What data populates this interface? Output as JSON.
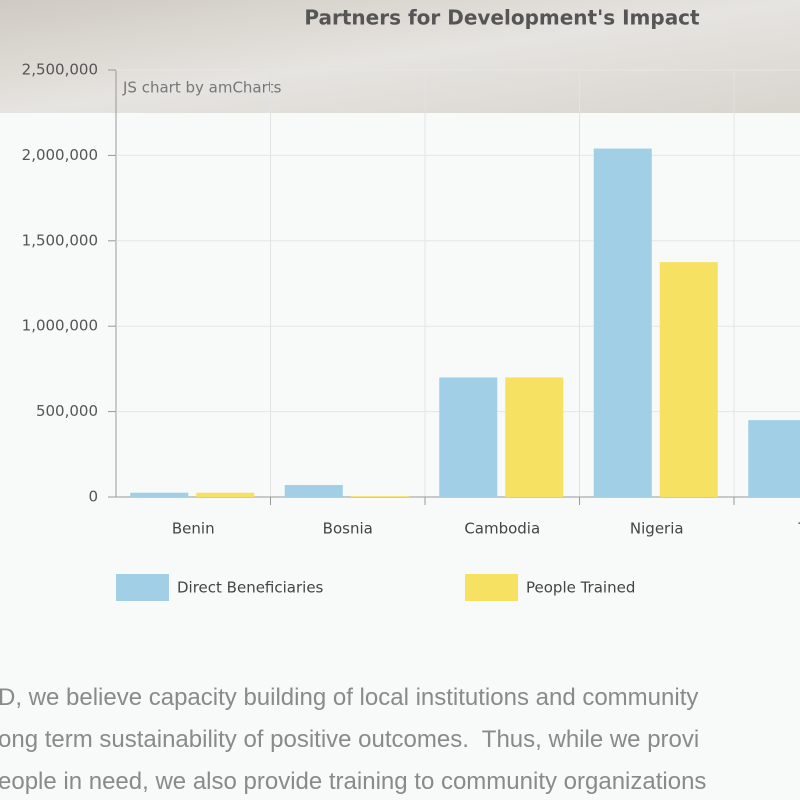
{
  "chart_data": {
    "type": "bar",
    "title": "Partners for Development's Impact",
    "credit": "JS chart by amCharts",
    "categories": [
      "Benin",
      "Bosnia",
      "Cambodia",
      "Nigeria",
      "Tan"
    ],
    "series": [
      {
        "name": "Direct Beneficiaries",
        "color": "#a1d0e6",
        "values": [
          25000,
          70000,
          700000,
          2040000,
          450000
        ]
      },
      {
        "name": "People Trained",
        "color": "#f7e163",
        "values": [
          25000,
          5000,
          700000,
          1375000,
          null
        ]
      }
    ],
    "ylim": [
      0,
      2500000
    ],
    "yticks": [
      {
        "value": 0,
        "label": "0"
      },
      {
        "value": 500000,
        "label": "500,000"
      },
      {
        "value": 1000000,
        "label": "1,000,000"
      },
      {
        "value": 1500000,
        "label": "1,500,000"
      },
      {
        "value": 2000000,
        "label": "2,000,000"
      },
      {
        "value": 2500000,
        "label": "2,500,000"
      }
    ],
    "grid": true
  },
  "page": {
    "paragraph": [
      "D, we believe capacity building of local institutions and community",
      "ong term sustainability of positive outcomes.  Thus, while we provi",
      "eople in need, we also provide training to community organizations"
    ]
  }
}
